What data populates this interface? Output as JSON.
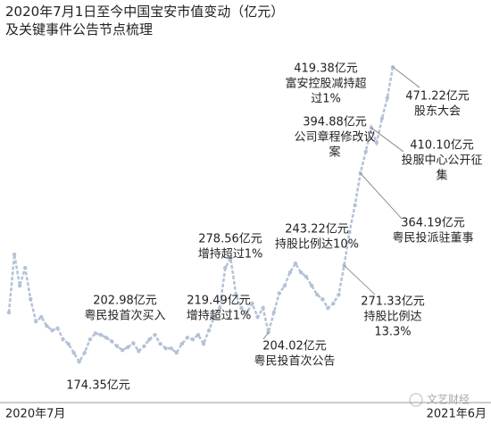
{
  "chart_data": {
    "type": "line",
    "title": [
      "2020年7月1日至今中国宝安市值变动（亿元）",
      "及关键事件公告节点梳理"
    ],
    "x_labels": [
      "2020年7月",
      "2021年6月"
    ],
    "values": [
      223.9,
      282.4,
      250.9,
      268.8,
      237.4,
      214.9,
      219.4,
      210.4,
      205.9,
      208,
      196.9,
      192.4,
      183.4,
      174.35,
      183.4,
      196.9,
      202.98,
      201.4,
      198.6,
      195,
      190,
      186,
      189,
      193,
      185,
      190,
      196.9,
      201.4,
      192.4,
      187.9,
      187.9,
      183.4,
      192.4,
      198.6,
      196.9,
      201.4,
      192.4,
      206,
      219.49,
      228.4,
      268.8,
      278.56,
      241.9,
      228.4,
      223.9,
      232.9,
      219.4,
      228.4,
      204.02,
      223.9,
      243.22,
      250.9,
      264.4,
      273.4,
      264.4,
      259.9,
      250.9,
      241.9,
      237.4,
      228.4,
      232.9,
      241.9,
      271.33,
      304.9,
      331.9,
      364.19,
      385.9,
      410.1,
      394.88,
      419.38,
      440,
      471.22
    ],
    "ylim": [
      135,
      500
    ],
    "color": "#b4c2d6",
    "annotations": [
      {
        "lines": [
          "174.35亿元"
        ]
      },
      {
        "lines": [
          "202.98亿元",
          "粤民投首次买入"
        ]
      },
      {
        "lines": [
          "219.49亿元",
          "增持超过1%"
        ]
      },
      {
        "lines": [
          "278.56亿元",
          "增持超过1%"
        ]
      },
      {
        "lines": [
          "204.02亿元",
          "粤民投首次公告"
        ]
      },
      {
        "lines": [
          "243.22亿元",
          "持股比例达10%"
        ]
      },
      {
        "lines": [
          "271.33亿元",
          "持股比例达",
          "13.3%"
        ]
      },
      {
        "lines": [
          "364.19亿元",
          "粤民投派驻董事"
        ]
      },
      {
        "lines": [
          "410.10亿元",
          "投服中心公开征",
          "集"
        ]
      },
      {
        "lines": [
          "394.88亿元",
          "公司章程修改议",
          "案"
        ]
      },
      {
        "lines": [
          "419.38亿元",
          "富安控股减持超",
          "过1%"
        ]
      },
      {
        "lines": [
          "471.22亿元",
          "股东大会"
        ]
      }
    ]
  },
  "watermark": "文艺财经"
}
